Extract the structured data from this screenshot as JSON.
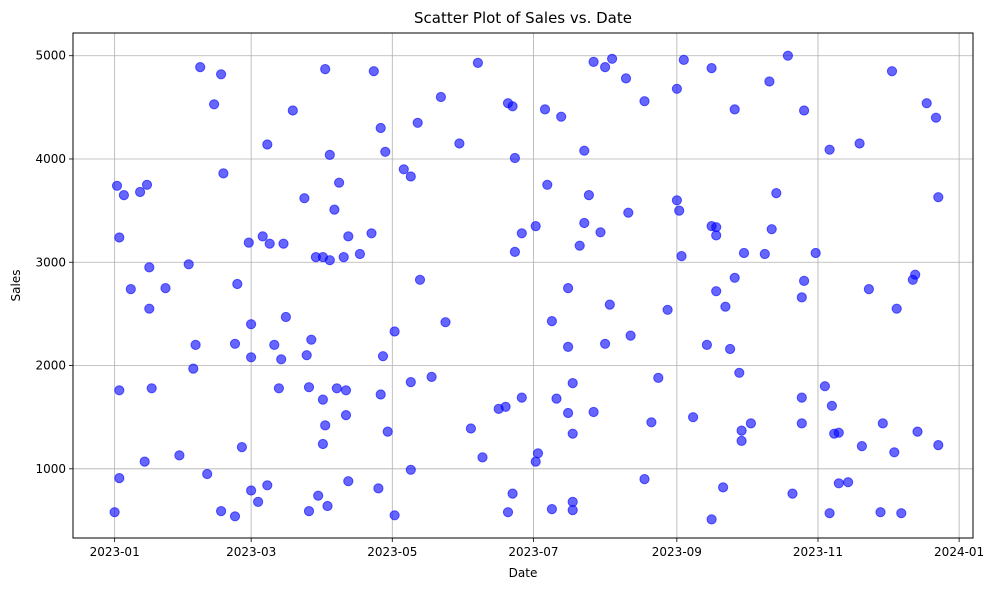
{
  "chart_data": {
    "type": "scatter",
    "title": "Scatter Plot of Sales vs. Date",
    "xlabel": "Date",
    "ylabel": "Sales",
    "x_ticks": [
      "2023-01",
      "2023-03",
      "2023-05",
      "2023-07",
      "2023-09",
      "2023-11",
      "2024-01"
    ],
    "y_ticks": [
      "1000",
      "2000",
      "3000",
      "4000",
      "5000"
    ],
    "xlim": [
      "2022-12-14",
      "2024-01-07"
    ],
    "ylim": [
      330,
      5220
    ],
    "grid": true,
    "marker_color": "#0000ff",
    "marker_alpha": 0.6,
    "points": [
      {
        "x": "2023-01-01",
        "y": 580
      },
      {
        "x": "2023-01-02",
        "y": 3740
      },
      {
        "x": "2023-01-03",
        "y": 3240
      },
      {
        "x": "2023-01-03",
        "y": 1760
      },
      {
        "x": "2023-01-03",
        "y": 910
      },
      {
        "x": "2023-01-05",
        "y": 3650
      },
      {
        "x": "2023-01-08",
        "y": 2740
      },
      {
        "x": "2023-01-12",
        "y": 3680
      },
      {
        "x": "2023-01-14",
        "y": 1070
      },
      {
        "x": "2023-01-15",
        "y": 3750
      },
      {
        "x": "2023-01-16",
        "y": 2950
      },
      {
        "x": "2023-01-16",
        "y": 2550
      },
      {
        "x": "2023-01-17",
        "y": 1780
      },
      {
        "x": "2023-01-23",
        "y": 2750
      },
      {
        "x": "2023-01-29",
        "y": 1130
      },
      {
        "x": "2023-02-02",
        "y": 2980
      },
      {
        "x": "2023-02-04",
        "y": 1970
      },
      {
        "x": "2023-02-05",
        "y": 2200
      },
      {
        "x": "2023-02-07",
        "y": 4890
      },
      {
        "x": "2023-02-10",
        "y": 950
      },
      {
        "x": "2023-02-13",
        "y": 4530
      },
      {
        "x": "2023-02-16",
        "y": 4820
      },
      {
        "x": "2023-02-16",
        "y": 590
      },
      {
        "x": "2023-02-17",
        "y": 3860
      },
      {
        "x": "2023-02-22",
        "y": 540
      },
      {
        "x": "2023-02-22",
        "y": 2210
      },
      {
        "x": "2023-02-23",
        "y": 2790
      },
      {
        "x": "2023-02-25",
        "y": 1210
      },
      {
        "x": "2023-02-28",
        "y": 3190
      },
      {
        "x": "2023-03-01",
        "y": 790
      },
      {
        "x": "2023-03-01",
        "y": 2400
      },
      {
        "x": "2023-03-01",
        "y": 2080
      },
      {
        "x": "2023-03-04",
        "y": 680
      },
      {
        "x": "2023-03-06",
        "y": 3250
      },
      {
        "x": "2023-03-08",
        "y": 4140
      },
      {
        "x": "2023-03-08",
        "y": 840
      },
      {
        "x": "2023-03-09",
        "y": 3180
      },
      {
        "x": "2023-03-11",
        "y": 2200
      },
      {
        "x": "2023-03-13",
        "y": 1780
      },
      {
        "x": "2023-03-14",
        "y": 2060
      },
      {
        "x": "2023-03-15",
        "y": 3180
      },
      {
        "x": "2023-03-16",
        "y": 2470
      },
      {
        "x": "2023-03-19",
        "y": 4470
      },
      {
        "x": "2023-03-24",
        "y": 3620
      },
      {
        "x": "2023-03-25",
        "y": 2100
      },
      {
        "x": "2023-03-26",
        "y": 1790
      },
      {
        "x": "2023-03-26",
        "y": 590
      },
      {
        "x": "2023-03-27",
        "y": 2250
      },
      {
        "x": "2023-03-29",
        "y": 3050
      },
      {
        "x": "2023-03-30",
        "y": 740
      },
      {
        "x": "2023-04-01",
        "y": 3050
      },
      {
        "x": "2023-04-01",
        "y": 1670
      },
      {
        "x": "2023-04-01",
        "y": 1240
      },
      {
        "x": "2023-04-02",
        "y": 4870
      },
      {
        "x": "2023-04-02",
        "y": 1420
      },
      {
        "x": "2023-04-03",
        "y": 640
      },
      {
        "x": "2023-04-04",
        "y": 3020
      },
      {
        "x": "2023-04-04",
        "y": 4040
      },
      {
        "x": "2023-04-06",
        "y": 3510
      },
      {
        "x": "2023-04-07",
        "y": 1780
      },
      {
        "x": "2023-04-08",
        "y": 3770
      },
      {
        "x": "2023-04-10",
        "y": 3050
      },
      {
        "x": "2023-04-11",
        "y": 1520
      },
      {
        "x": "2023-04-11",
        "y": 1760
      },
      {
        "x": "2023-04-12",
        "y": 3250
      },
      {
        "x": "2023-04-12",
        "y": 880
      },
      {
        "x": "2023-04-17",
        "y": 3080
      },
      {
        "x": "2023-04-22",
        "y": 3280
      },
      {
        "x": "2023-04-23",
        "y": 4850
      },
      {
        "x": "2023-04-25",
        "y": 810
      },
      {
        "x": "2023-04-26",
        "y": 4300
      },
      {
        "x": "2023-04-26",
        "y": 1720
      },
      {
        "x": "2023-04-27",
        "y": 2090
      },
      {
        "x": "2023-04-28",
        "y": 4070
      },
      {
        "x": "2023-04-29",
        "y": 1360
      },
      {
        "x": "2023-05-02",
        "y": 2330
      },
      {
        "x": "2023-05-02",
        "y": 550
      },
      {
        "x": "2023-05-06",
        "y": 3900
      },
      {
        "x": "2023-05-09",
        "y": 3830
      },
      {
        "x": "2023-05-09",
        "y": 1840
      },
      {
        "x": "2023-05-09",
        "y": 990
      },
      {
        "x": "2023-05-12",
        "y": 4350
      },
      {
        "x": "2023-05-13",
        "y": 2830
      },
      {
        "x": "2023-05-18",
        "y": 1890
      },
      {
        "x": "2023-05-22",
        "y": 4600
      },
      {
        "x": "2023-05-24",
        "y": 2420
      },
      {
        "x": "2023-05-30",
        "y": 4150
      },
      {
        "x": "2023-06-04",
        "y": 1390
      },
      {
        "x": "2023-06-07",
        "y": 4930
      },
      {
        "x": "2023-06-09",
        "y": 1110
      },
      {
        "x": "2023-06-16",
        "y": 1580
      },
      {
        "x": "2023-06-19",
        "y": 1600
      },
      {
        "x": "2023-06-20",
        "y": 580
      },
      {
        "x": "2023-06-20",
        "y": 4540
      },
      {
        "x": "2023-06-22",
        "y": 4510
      },
      {
        "x": "2023-06-22",
        "y": 760
      },
      {
        "x": "2023-06-23",
        "y": 4010
      },
      {
        "x": "2023-06-23",
        "y": 3100
      },
      {
        "x": "2023-06-26",
        "y": 3280
      },
      {
        "x": "2023-06-26",
        "y": 1690
      },
      {
        "x": "2023-07-02",
        "y": 3350
      },
      {
        "x": "2023-07-02",
        "y": 1070
      },
      {
        "x": "2023-07-03",
        "y": 1150
      },
      {
        "x": "2023-07-06",
        "y": 4480
      },
      {
        "x": "2023-07-07",
        "y": 3750
      },
      {
        "x": "2023-07-09",
        "y": 2430
      },
      {
        "x": "2023-07-09",
        "y": 610
      },
      {
        "x": "2023-07-11",
        "y": 1680
      },
      {
        "x": "2023-07-13",
        "y": 4410
      },
      {
        "x": "2023-07-16",
        "y": 2750
      },
      {
        "x": "2023-07-16",
        "y": 2180
      },
      {
        "x": "2023-07-16",
        "y": 1540
      },
      {
        "x": "2023-07-18",
        "y": 1340
      },
      {
        "x": "2023-07-18",
        "y": 1830
      },
      {
        "x": "2023-07-18",
        "y": 680
      },
      {
        "x": "2023-07-18",
        "y": 600
      },
      {
        "x": "2023-07-21",
        "y": 3160
      },
      {
        "x": "2023-07-23",
        "y": 3380
      },
      {
        "x": "2023-07-23",
        "y": 4080
      },
      {
        "x": "2023-07-25",
        "y": 3650
      },
      {
        "x": "2023-07-27",
        "y": 4940
      },
      {
        "x": "2023-07-27",
        "y": 1550
      },
      {
        "x": "2023-07-30",
        "y": 3290
      },
      {
        "x": "2023-08-01",
        "y": 4890
      },
      {
        "x": "2023-08-01",
        "y": 2210
      },
      {
        "x": "2023-08-03",
        "y": 2590
      },
      {
        "x": "2023-08-04",
        "y": 4970
      },
      {
        "x": "2023-08-10",
        "y": 4780
      },
      {
        "x": "2023-08-11",
        "y": 3480
      },
      {
        "x": "2023-08-12",
        "y": 2290
      },
      {
        "x": "2023-08-18",
        "y": 4560
      },
      {
        "x": "2023-08-18",
        "y": 900
      },
      {
        "x": "2023-08-21",
        "y": 1450
      },
      {
        "x": "2023-08-24",
        "y": 1880
      },
      {
        "x": "2023-08-28",
        "y": 2540
      },
      {
        "x": "2023-09-01",
        "y": 4680
      },
      {
        "x": "2023-09-01",
        "y": 3600
      },
      {
        "x": "2023-09-02",
        "y": 3500
      },
      {
        "x": "2023-09-03",
        "y": 3060
      },
      {
        "x": "2023-09-04",
        "y": 4960
      },
      {
        "x": "2023-09-08",
        "y": 1500
      },
      {
        "x": "2023-09-14",
        "y": 2200
      },
      {
        "x": "2023-09-16",
        "y": 4880
      },
      {
        "x": "2023-09-16",
        "y": 3350
      },
      {
        "x": "2023-09-16",
        "y": 510
      },
      {
        "x": "2023-09-18",
        "y": 3340
      },
      {
        "x": "2023-09-18",
        "y": 3260
      },
      {
        "x": "2023-09-18",
        "y": 2720
      },
      {
        "x": "2023-09-21",
        "y": 820
      },
      {
        "x": "2023-09-22",
        "y": 2570
      },
      {
        "x": "2023-09-24",
        "y": 2160
      },
      {
        "x": "2023-09-26",
        "y": 4480
      },
      {
        "x": "2023-09-26",
        "y": 2850
      },
      {
        "x": "2023-09-28",
        "y": 1930
      },
      {
        "x": "2023-09-29",
        "y": 1270
      },
      {
        "x": "2023-09-29",
        "y": 1370
      },
      {
        "x": "2023-09-30",
        "y": 3090
      },
      {
        "x": "2023-10-03",
        "y": 1440
      },
      {
        "x": "2023-10-09",
        "y": 3080
      },
      {
        "x": "2023-10-11",
        "y": 4750
      },
      {
        "x": "2023-10-12",
        "y": 3320
      },
      {
        "x": "2023-10-14",
        "y": 3670
      },
      {
        "x": "2023-10-19",
        "y": 5000
      },
      {
        "x": "2023-10-21",
        "y": 760
      },
      {
        "x": "2023-10-25",
        "y": 2660
      },
      {
        "x": "2023-10-25",
        "y": 1690
      },
      {
        "x": "2023-10-25",
        "y": 1440
      },
      {
        "x": "2023-10-26",
        "y": 4470
      },
      {
        "x": "2023-10-26",
        "y": 2820
      },
      {
        "x": "2023-10-31",
        "y": 3090
      },
      {
        "x": "2023-11-04",
        "y": 1800
      },
      {
        "x": "2023-11-06",
        "y": 570
      },
      {
        "x": "2023-11-06",
        "y": 4090
      },
      {
        "x": "2023-11-07",
        "y": 1610
      },
      {
        "x": "2023-11-08",
        "y": 1340
      },
      {
        "x": "2023-11-10",
        "y": 1350
      },
      {
        "x": "2023-11-10",
        "y": 860
      },
      {
        "x": "2023-11-14",
        "y": 870
      },
      {
        "x": "2023-11-19",
        "y": 4150
      },
      {
        "x": "2023-11-20",
        "y": 1220
      },
      {
        "x": "2023-11-23",
        "y": 2740
      },
      {
        "x": "2023-11-28",
        "y": 580
      },
      {
        "x": "2023-11-29",
        "y": 1440
      },
      {
        "x": "2023-12-03",
        "y": 4850
      },
      {
        "x": "2023-12-04",
        "y": 1160
      },
      {
        "x": "2023-12-05",
        "y": 2550
      },
      {
        "x": "2023-12-07",
        "y": 570
      },
      {
        "x": "2023-12-12",
        "y": 2830
      },
      {
        "x": "2023-12-13",
        "y": 2880
      },
      {
        "x": "2023-12-14",
        "y": 1360
      },
      {
        "x": "2023-12-18",
        "y": 4540
      },
      {
        "x": "2023-12-22",
        "y": 4400
      },
      {
        "x": "2023-12-23",
        "y": 3630
      },
      {
        "x": "2023-12-23",
        "y": 1230
      }
    ]
  }
}
